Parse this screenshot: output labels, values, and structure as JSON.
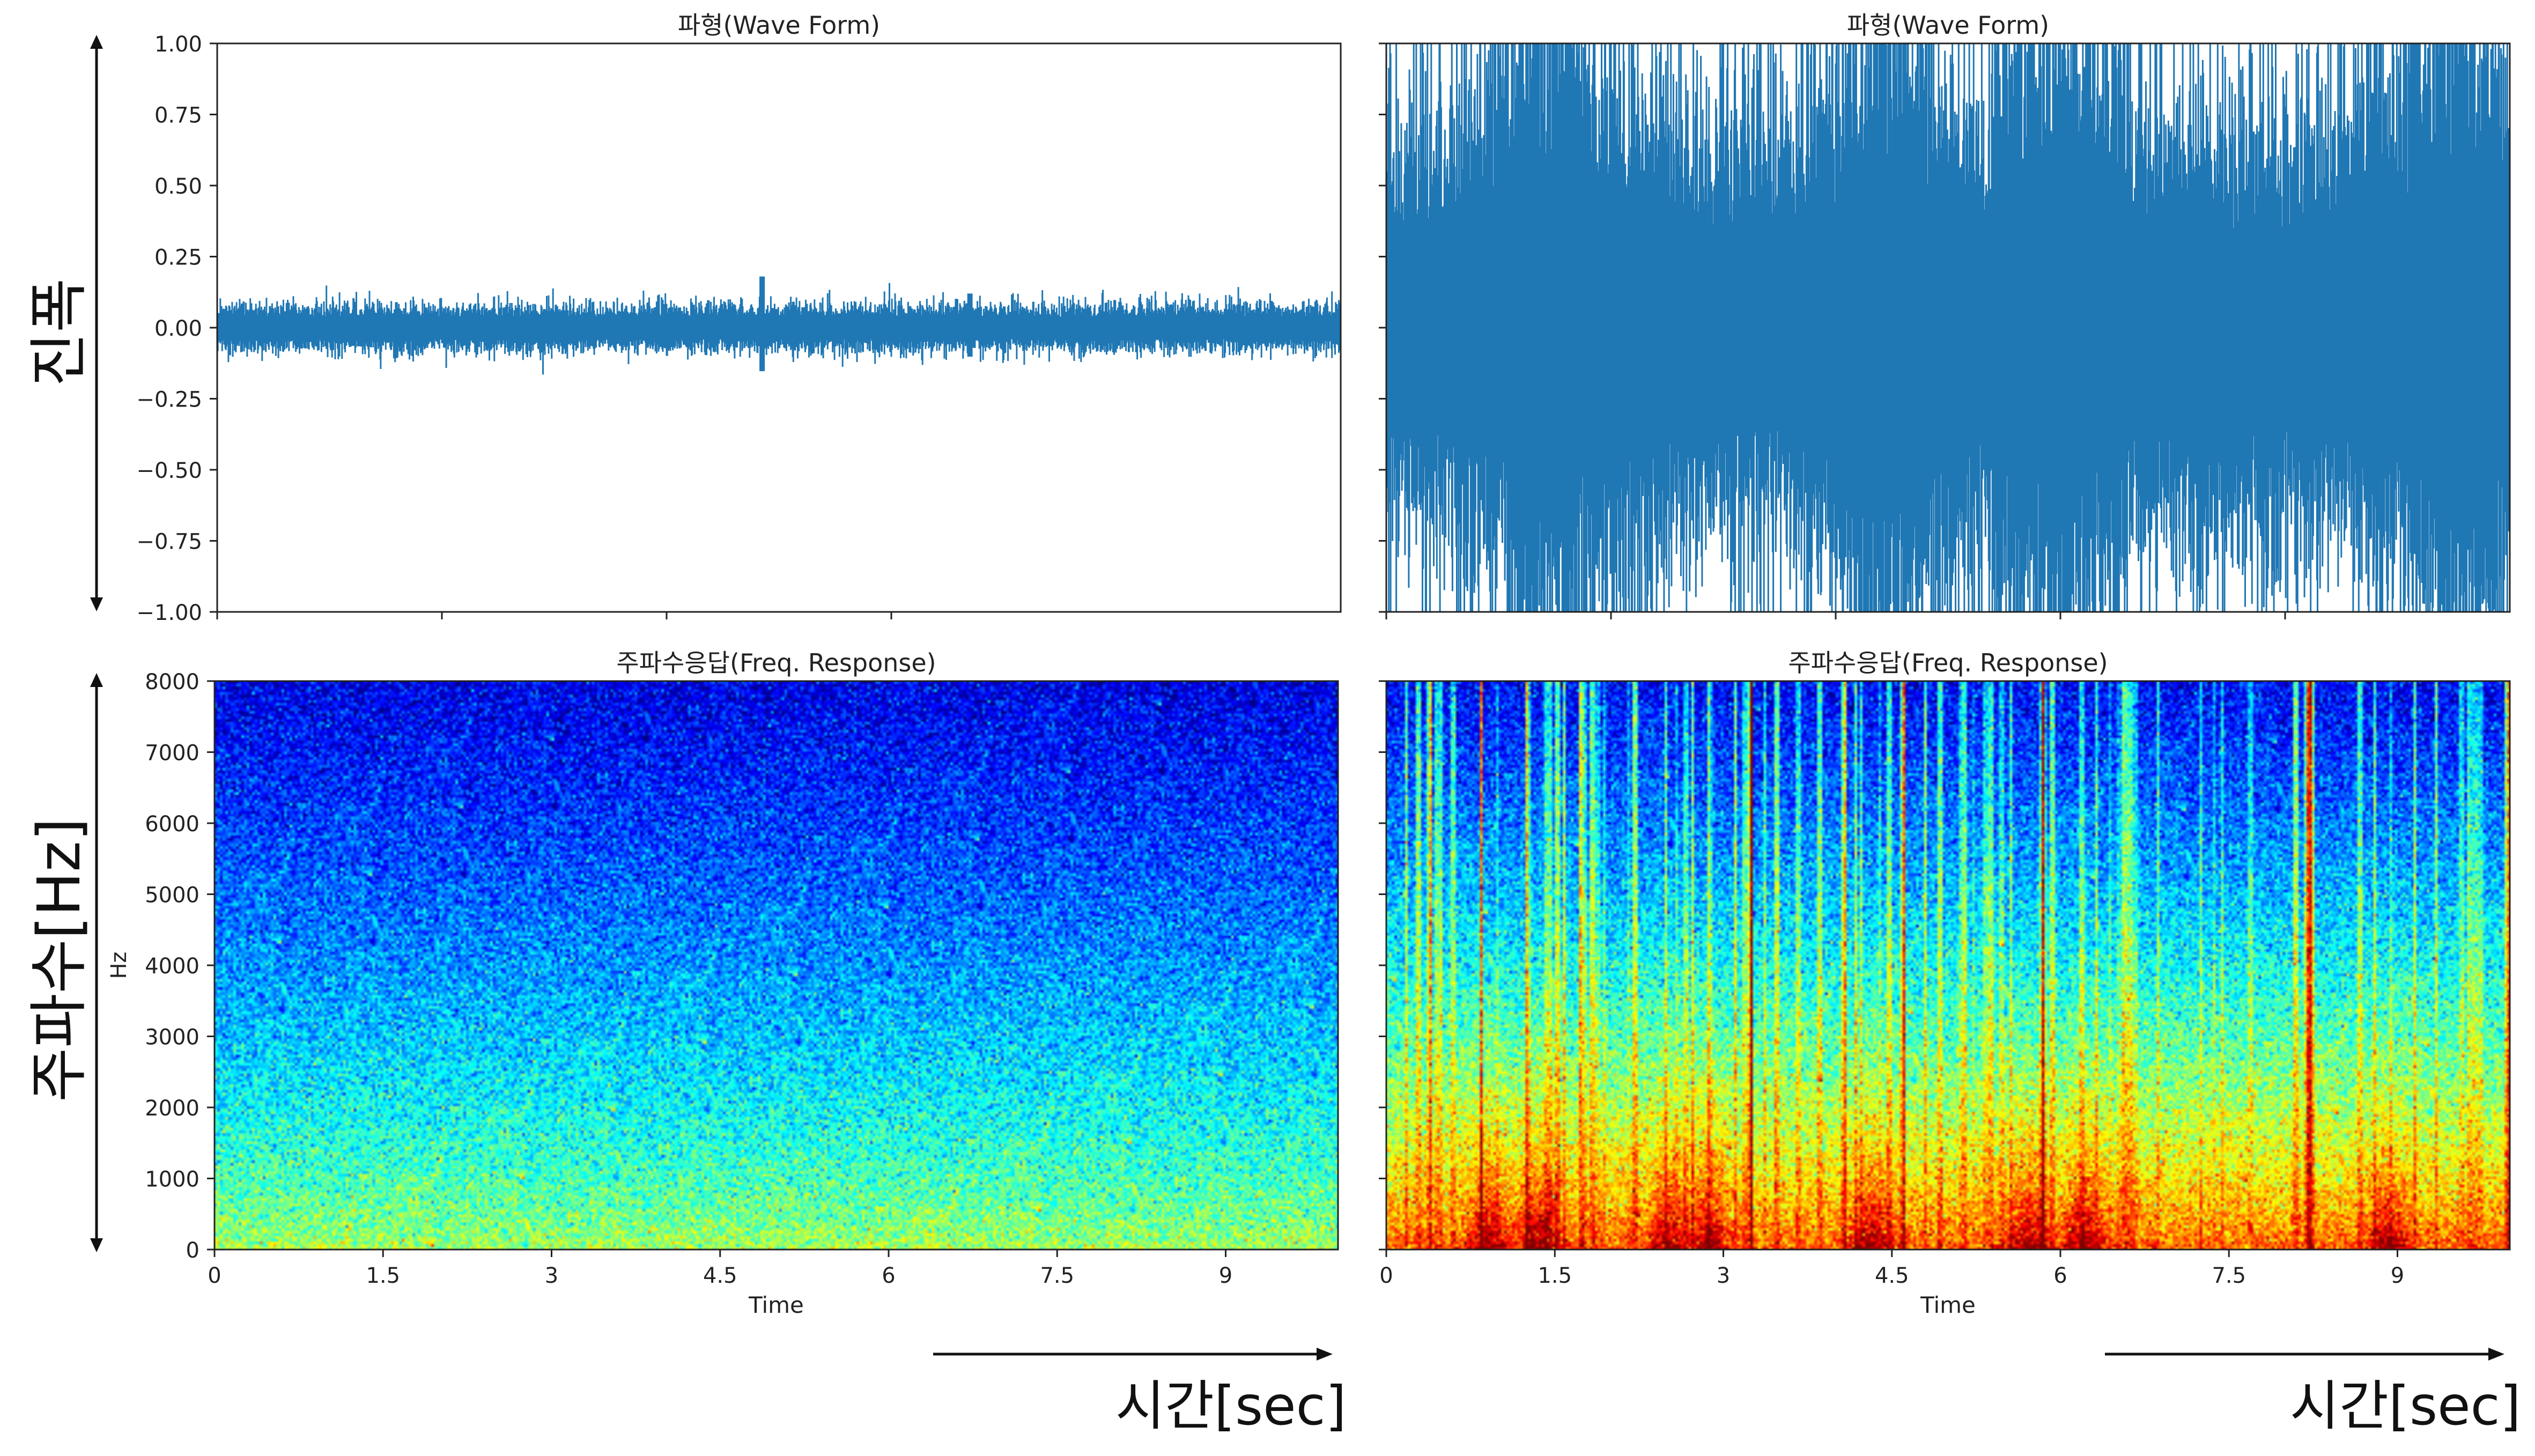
{
  "side_labels": {
    "amplitude": "진폭",
    "frequency": "주파수[Hz]",
    "time_left": "시간[sec]",
    "time_right": "시간[sec]"
  },
  "colors": {
    "waveform": "#1f77b4",
    "axis": "#222222",
    "colormap": "jet"
  },
  "chart_data": [
    {
      "type": "line",
      "title": "파형(Wave Form)",
      "xlabel": "",
      "ylabel": "",
      "ylim": [
        -1.0,
        1.0
      ],
      "yticks": [
        "1.00",
        "0.75",
        "0.50",
        "0.25",
        "0.00",
        "−0.25",
        "−0.50",
        "−0.75",
        "−1.00"
      ],
      "xlim": [
        0,
        10
      ],
      "xtick_values": [
        0,
        2,
        4,
        6
      ],
      "envelope": {
        "base_amplitude": 0.07,
        "peak_amplitude": 0.12,
        "spikes": [
          {
            "t": 4.85,
            "amp": 0.18
          },
          {
            "t": 6.7,
            "amp": 0.12
          }
        ]
      }
    },
    {
      "type": "line",
      "title": "파형(Wave Form)",
      "xlabel": "",
      "ylabel": "",
      "ylim": [
        -1.0,
        1.0
      ],
      "xlim": [
        0,
        10
      ],
      "xtick_values": [
        0,
        2,
        4,
        6,
        8
      ],
      "envelope": {
        "base_amplitude": 0.6,
        "peak_amplitude": 1.0,
        "bursts": [
          1.5,
          4.5,
          6.0,
          9.5
        ]
      }
    },
    {
      "type": "heatmap",
      "title": "주파수응답(Freq. Response)",
      "xlabel": "Time",
      "ylabel": "Hz",
      "xlim": [
        0,
        10
      ],
      "ylim": [
        0,
        8000
      ],
      "xtick_values": [
        0,
        1.5,
        3,
        4.5,
        6,
        7.5,
        9
      ],
      "xticks": [
        "0",
        "1.5",
        "3",
        "4.5",
        "6",
        "7.5",
        "9"
      ],
      "ytick_values": [
        0,
        1000,
        2000,
        3000,
        4000,
        5000,
        6000,
        7000,
        8000
      ],
      "yticks": [
        "0",
        "1000",
        "2000",
        "3000",
        "4000",
        "5000",
        "6000",
        "7000",
        "8000"
      ],
      "intensity": {
        "low_freq": 0.55,
        "high_freq": 0.1
      }
    },
    {
      "type": "heatmap",
      "title": "주파수응답(Freq. Response)",
      "xlabel": "Time",
      "ylabel": "",
      "xlim": [
        0,
        10
      ],
      "ylim": [
        0,
        8000
      ],
      "xtick_values": [
        0,
        1.5,
        3,
        4.5,
        6,
        7.5,
        9
      ],
      "xticks": [
        "0",
        "1.5",
        "3",
        "4.5",
        "6",
        "7.5",
        "9"
      ],
      "ytick_values": [
        0,
        1000,
        2000,
        3000,
        4000,
        5000,
        6000,
        7000,
        8000
      ],
      "intensity": {
        "low_freq": 0.8,
        "high_freq": 0.12
      }
    }
  ]
}
